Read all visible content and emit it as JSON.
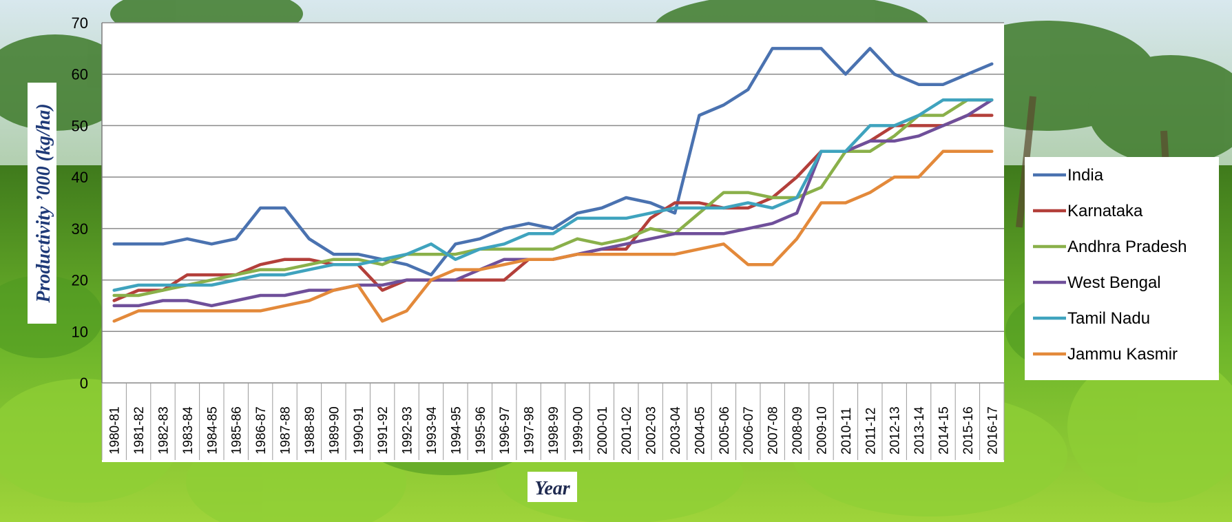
{
  "chart_data": {
    "type": "line",
    "xlabel": "Year",
    "ylabel": "Productivity ’000 (kg/ha)",
    "ylim": [
      0,
      70
    ],
    "yticks": [
      0,
      10,
      20,
      30,
      40,
      50,
      60,
      70
    ],
    "grid": "horizontal",
    "legend_position": "right",
    "categories": [
      "1980-81",
      "1981-82",
      "1982-83",
      "1983-84",
      "1984-85",
      "1985-86",
      "1986-87",
      "1987-88",
      "1988-89",
      "1989-90",
      "1990-91",
      "1991-92",
      "1992-93",
      "1993-94",
      "1994-95",
      "1995-96",
      "1996-97",
      "1997-98",
      "1998-99",
      "1999-00",
      "2000-01",
      "2001-02",
      "2002-03",
      "2003-04",
      "2004-05",
      "2005-06",
      "2006-07",
      "2007-08",
      "2008-09",
      "2009-10",
      "2010-11",
      "2011-12",
      "2012-13",
      "2013-14",
      "2014-15",
      "2015-16",
      "2016-17"
    ],
    "series": [
      {
        "name": "India",
        "color": "#4a72b0",
        "values": [
          27,
          27,
          27,
          28,
          27,
          28,
          34,
          34,
          28,
          25,
          25,
          24,
          23,
          21,
          27,
          28,
          30,
          31,
          30,
          33,
          34,
          36,
          35,
          33,
          52,
          54,
          57,
          65,
          65,
          65,
          60,
          65,
          60,
          58,
          58,
          60,
          62
        ]
      },
      {
        "name": "Karnataka",
        "color": "#b33f3a",
        "values": [
          16,
          18,
          18,
          21,
          21,
          21,
          23,
          24,
          24,
          23,
          23,
          18,
          20,
          20,
          20,
          20,
          20,
          24,
          24,
          25,
          26,
          26,
          32,
          35,
          35,
          34,
          34,
          36,
          40,
          45,
          45,
          47,
          50,
          50,
          50,
          52,
          52
        ]
      },
      {
        "name": "Andhra Pradesh",
        "color": "#8ab04a",
        "values": [
          17,
          17,
          18,
          19,
          20,
          21,
          22,
          22,
          23,
          24,
          24,
          23,
          25,
          25,
          25,
          26,
          26,
          26,
          26,
          28,
          27,
          28,
          30,
          29,
          33,
          37,
          37,
          36,
          36,
          38,
          45,
          45,
          48,
          52,
          52,
          55,
          55
        ]
      },
      {
        "name": "West Bengal",
        "color": "#6f4f9a",
        "values": [
          15,
          15,
          16,
          16,
          15,
          16,
          17,
          17,
          18,
          18,
          19,
          19,
          20,
          20,
          20,
          22,
          24,
          24,
          24,
          25,
          26,
          27,
          28,
          29,
          29,
          29,
          30,
          31,
          33,
          45,
          45,
          47,
          47,
          48,
          50,
          52,
          55
        ]
      },
      {
        "name": "Tamil Nadu",
        "color": "#3fa3be",
        "values": [
          18,
          19,
          19,
          19,
          19,
          20,
          21,
          21,
          22,
          23,
          23,
          24,
          25,
          27,
          24,
          26,
          27,
          29,
          29,
          32,
          32,
          32,
          33,
          34,
          34,
          34,
          35,
          34,
          36,
          45,
          45,
          50,
          50,
          52,
          55,
          55,
          55
        ]
      },
      {
        "name": "Jammu Kasmir",
        "color": "#e3893a",
        "values": [
          12,
          14,
          14,
          14,
          14,
          14,
          14,
          15,
          16,
          18,
          19,
          12,
          14,
          20,
          22,
          22,
          23,
          24,
          24,
          25,
          25,
          25,
          25,
          25,
          26,
          27,
          23,
          23,
          28,
          35,
          35,
          37,
          40,
          40,
          45,
          45,
          45
        ]
      }
    ]
  }
}
